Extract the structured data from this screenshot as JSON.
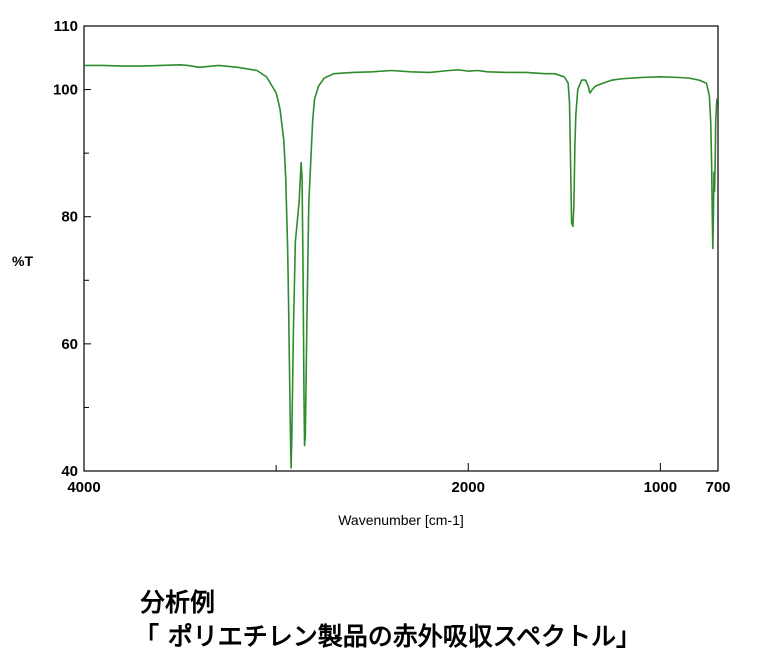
{
  "chart_data": {
    "type": "line",
    "title": "",
    "xlabel": "Wavenumber [cm-1]",
    "ylabel": "%T",
    "xlim": [
      4000,
      700
    ],
    "ylim": [
      40,
      110
    ],
    "x_reversed": true,
    "x_ticks": [
      4000,
      2000,
      1000,
      700
    ],
    "x_tick_labels": [
      "4000",
      "2000",
      "1000",
      "700"
    ],
    "x_minor_ticks": [
      3000
    ],
    "y_ticks": [
      40,
      60,
      80,
      100,
      110
    ],
    "y_tick_labels": [
      "40",
      "60",
      "80",
      "100",
      "110"
    ],
    "y_minor_ticks": [
      50,
      70,
      90
    ],
    "grid": false,
    "line_color": "#2e8b2e",
    "series": [
      {
        "x": [
          4000,
          3900,
          3800,
          3700,
          3600,
          3500,
          3460,
          3400,
          3300,
          3200,
          3100,
          3050,
          3000,
          2980,
          2960,
          2950,
          2940,
          2935,
          2930,
          2925,
          2922,
          2918,
          2910,
          2900,
          2880,
          2870,
          2865,
          2860,
          2855,
          2852,
          2848,
          2840,
          2830,
          2810,
          2800,
          2780,
          2750,
          2700,
          2600,
          2500,
          2400,
          2300,
          2200,
          2100,
          2050,
          2000,
          1950,
          1900,
          1800,
          1700,
          1600,
          1550,
          1500,
          1480,
          1473,
          1470,
          1466,
          1462,
          1455,
          1450,
          1445,
          1440,
          1430,
          1410,
          1390,
          1375,
          1368,
          1365,
          1360,
          1340,
          1300,
          1250,
          1200,
          1100,
          1000,
          900,
          850,
          800,
          760,
          745,
          738,
          733,
          730,
          727,
          724,
          721,
          718,
          715,
          712,
          708,
          705,
          700
        ],
        "y": [
          103.8,
          103.8,
          103.7,
          103.7,
          103.8,
          103.9,
          103.8,
          103.5,
          103.8,
          103.5,
          103.0,
          102.0,
          99.5,
          97.0,
          92.0,
          86.0,
          75.0,
          66.0,
          55.0,
          45.0,
          40.5,
          46.0,
          62.0,
          76.0,
          82.5,
          88.5,
          86.0,
          72.0,
          52.0,
          44.0,
          45.5,
          63.0,
          82.0,
          95.0,
          98.5,
          100.5,
          101.8,
          102.5,
          102.7,
          102.8,
          103.0,
          102.8,
          102.7,
          103.0,
          103.1,
          102.9,
          103.0,
          102.8,
          102.7,
          102.7,
          102.5,
          102.5,
          102.0,
          101.0,
          98.0,
          93.0,
          86.0,
          79.0,
          78.5,
          82.0,
          91.0,
          96.0,
          100.0,
          101.5,
          101.5,
          100.5,
          99.5,
          99.5,
          99.8,
          100.5,
          101.0,
          101.5,
          101.7,
          101.9,
          102.0,
          101.9,
          101.8,
          101.5,
          101.0,
          99.0,
          95.0,
          88.0,
          80.5,
          75.0,
          80.0,
          87.0,
          84.0,
          88.0,
          95.0,
          97.5,
          98.5,
          98.5
        ]
      }
    ]
  },
  "caption": {
    "line1": "分析例",
    "line2": "「 ポリエチレン製品の赤外吸収スペクトル」"
  }
}
